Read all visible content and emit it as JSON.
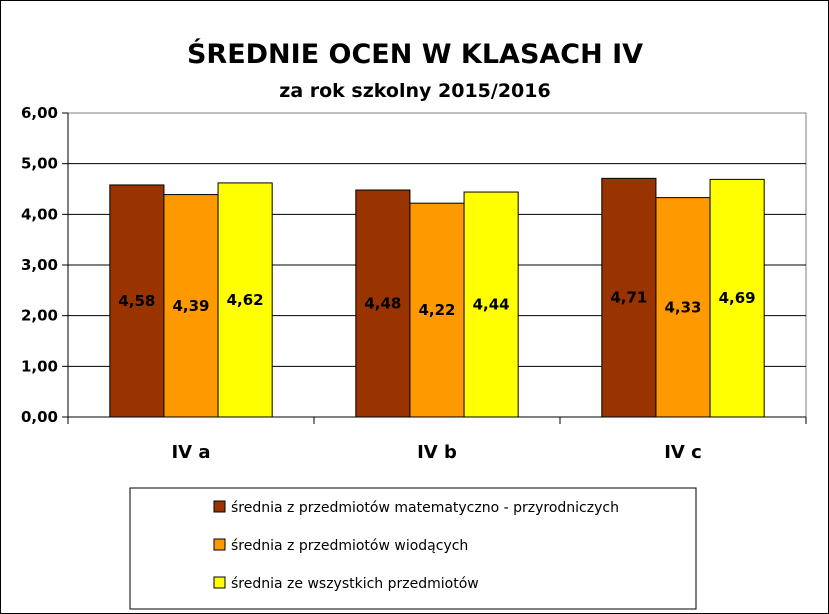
{
  "chart_data": {
    "type": "bar",
    "title": "ŚREDNIE OCEN W KLASACH IV",
    "subtitle": "za rok szkolny 2015/2016",
    "xlabel": "",
    "ylabel": "",
    "categories": [
      "IV a",
      "IV b",
      "IV c"
    ],
    "series": [
      {
        "name": "średnia z przedmiotów matematyczno - przyrodniczych",
        "color": "#993300",
        "values": [
          4.58,
          4.48,
          4.71
        ],
        "labels": [
          "4,58",
          "4,48",
          "4,71"
        ]
      },
      {
        "name": "średnia z przedmiotów wiodących",
        "color": "#FF9900",
        "values": [
          4.39,
          4.22,
          4.33
        ],
        "labels": [
          "4,39",
          "4,22",
          "4,33"
        ]
      },
      {
        "name": "średnia ze wszystkich przedmiotów",
        "color": "#FFFF00",
        "values": [
          4.62,
          4.44,
          4.69
        ],
        "labels": [
          "4,62",
          "4,44",
          "4,69"
        ]
      }
    ],
    "ylim": [
      0,
      6
    ],
    "yticks": [
      0,
      1,
      2,
      3,
      4,
      5,
      6
    ],
    "ytick_labels": [
      "0,00",
      "1,00",
      "2,00",
      "3,00",
      "4,00",
      "5,00",
      "6,00"
    ],
    "grid": true,
    "legend_position": "bottom"
  }
}
